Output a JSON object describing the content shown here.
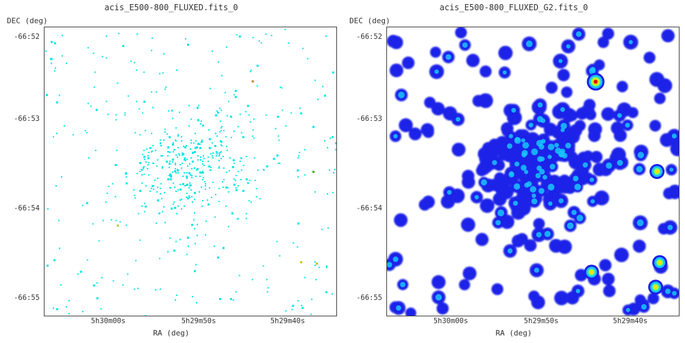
{
  "panels": [
    {
      "title": "acis_E500-800_FLUXED.fits_0",
      "ylabel": "DEC (deg)",
      "xlabel": "RA (deg)",
      "yticks": [
        "-66:52",
        "-66:53",
        "-66:54",
        "-66:55"
      ],
      "xticks": [
        "5h30m00s",
        "5h29m50s",
        "5h29m40s"
      ],
      "colormap": "cyan-sparse"
    },
    {
      "title": "acis_E500-800_FLUXED_G2.fits_0",
      "ylabel": "DEC (deg)",
      "xlabel": "RA (deg)",
      "yticks": [
        "-66:52",
        "-66:53",
        "-66:54",
        "-66:55"
      ],
      "xticks": [
        "5h30m00s",
        "5h29m50s",
        "5h29m40s"
      ],
      "colormap": "jet-smoothed"
    }
  ],
  "colors": {
    "cyan": "#00e5e5",
    "blue": "#1a20e8",
    "cyan_core": "#19c4ff",
    "green": "#7dff60",
    "yellow": "#ffe000",
    "red": "#e01010"
  }
}
